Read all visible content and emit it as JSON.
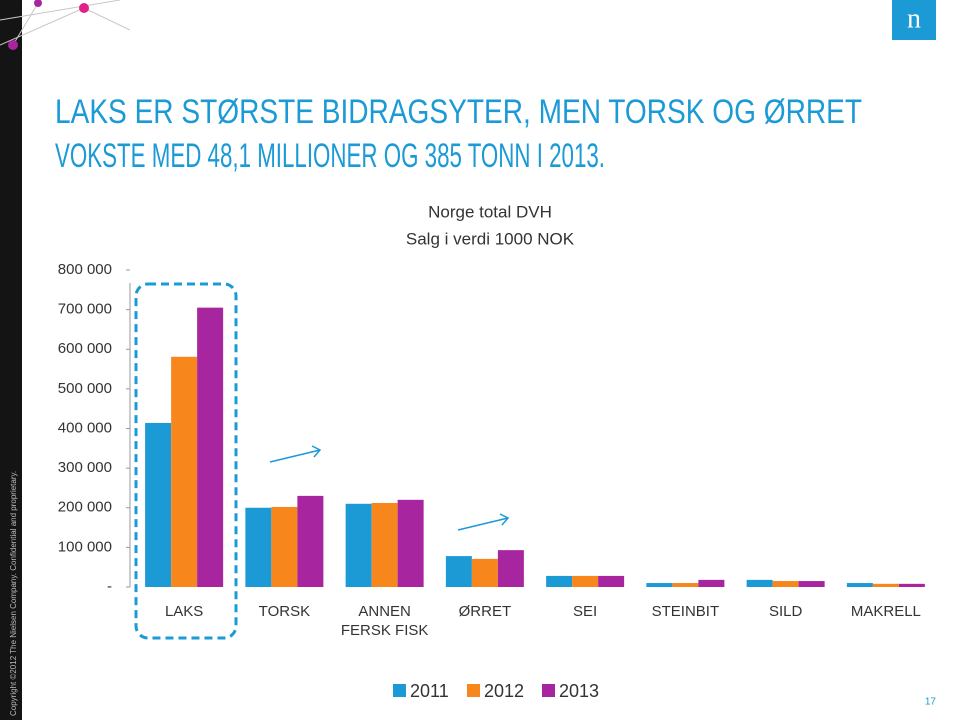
{
  "slide": {
    "title_lines": [
      "LAKS ER STØRSTE BIDRAGSYTER, MEN TORSK OG ØRRET",
      "VOKSTE MED 48,1 MILLIONER OG 385 TONN I 2013."
    ],
    "copyright": "Copyright ©2012 The Nielsen Company. Confidential and proprietary.",
    "logo": "n",
    "page_number": "17"
  },
  "chart_data": {
    "type": "bar",
    "title": "Norge total DVH",
    "subtitle": "Salg i verdi 1000 NOK",
    "categories": [
      "LAKS",
      "TORSK",
      "ANNEN FERSK FISK",
      "ØRRET",
      "SEI",
      "STEINBIT",
      "SILD",
      "MAKRELL"
    ],
    "series": [
      {
        "name": "2011",
        "color": "#1b9ad6",
        "values": [
          414000,
          200000,
          210000,
          78000,
          28000,
          10000,
          18000,
          10000
        ]
      },
      {
        "name": "2012",
        "color": "#f7861d",
        "values": [
          581000,
          202000,
          212000,
          71000,
          28000,
          10000,
          15000,
          8000
        ]
      },
      {
        "name": "2013",
        "color": "#a7259e",
        "values": [
          705000,
          230000,
          220000,
          93000,
          28000,
          18000,
          15000,
          8000
        ]
      }
    ],
    "ylim": [
      0,
      800000
    ],
    "yticks": [
      {
        "value": 0,
        "label": "-"
      },
      {
        "value": 100000,
        "label": "100 000"
      },
      {
        "value": 200000,
        "label": "200 000"
      },
      {
        "value": 300000,
        "label": "300 000"
      },
      {
        "value": 400000,
        "label": "400 000"
      },
      {
        "value": 500000,
        "label": "500 000"
      },
      {
        "value": 600000,
        "label": "600 000"
      },
      {
        "value": 700000,
        "label": "700 000"
      },
      {
        "value": 800000,
        "label": "800 000"
      }
    ],
    "grid": false,
    "legend": "bottom"
  }
}
